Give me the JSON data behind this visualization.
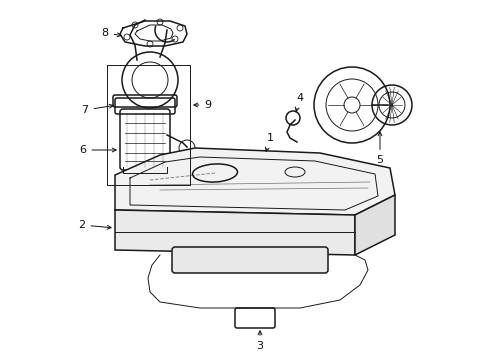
{
  "bg_color": "#ffffff",
  "line_color": "#1a1a1a",
  "label_color": "#111111",
  "figsize": [
    4.9,
    3.6
  ],
  "dpi": 100
}
